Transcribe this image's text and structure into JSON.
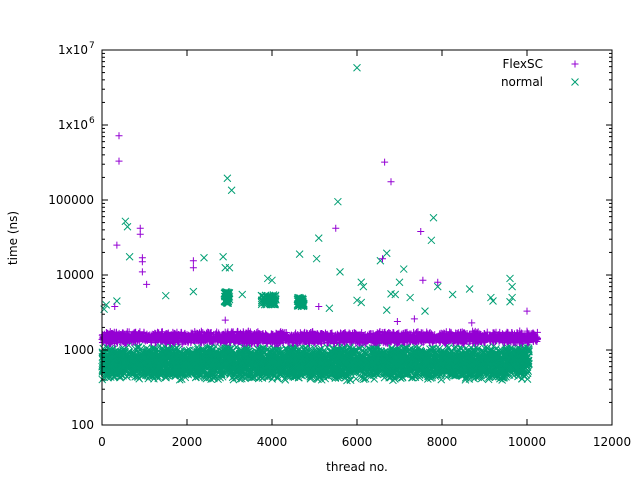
{
  "chart_data": {
    "type": "scatter",
    "title": "",
    "xlabel": "thread no.",
    "ylabel": "time (ns)",
    "xlim": [
      0,
      12000
    ],
    "ylim": [
      100,
      10000000
    ],
    "yscale": "log",
    "x_ticks": [
      {
        "value": 0,
        "label": "0"
      },
      {
        "value": 2000,
        "label": "2000"
      },
      {
        "value": 4000,
        "label": "4000"
      },
      {
        "value": 6000,
        "label": "6000"
      },
      {
        "value": 8000,
        "label": "8000"
      },
      {
        "value": 10000,
        "label": "10000"
      },
      {
        "value": 12000,
        "label": "12000"
      }
    ],
    "y_ticks": [
      {
        "value": 100,
        "label": "100"
      },
      {
        "value": 1000,
        "label": "1000"
      },
      {
        "value": 10000,
        "label": "10000"
      },
      {
        "value": 100000,
        "label": "100000"
      },
      {
        "value": 1000000,
        "label": "1x10",
        "exp": "6"
      },
      {
        "value": 10000000,
        "label": "1x10",
        "exp": "7"
      }
    ],
    "legend_position": "top-right",
    "series": [
      {
        "name": "FlexSC",
        "color": "#9400d3",
        "marker": "plus",
        "x_range": [
          0,
          10250
        ],
        "band": {
          "center": 1450,
          "low": 1200,
          "high": 1800
        },
        "points": [
          {
            "x": 400,
            "y": 720000
          },
          {
            "x": 400,
            "y": 330000
          },
          {
            "x": 350,
            "y": 25000
          },
          {
            "x": 900,
            "y": 42000
          },
          {
            "x": 900,
            "y": 35000
          },
          {
            "x": 950,
            "y": 17000
          },
          {
            "x": 950,
            "y": 15000
          },
          {
            "x": 1050,
            "y": 7500
          },
          {
            "x": 950,
            "y": 11000
          },
          {
            "x": 2150,
            "y": 15500
          },
          {
            "x": 2150,
            "y": 12500
          },
          {
            "x": 5500,
            "y": 42000
          },
          {
            "x": 6650,
            "y": 320000
          },
          {
            "x": 6800,
            "y": 175000
          },
          {
            "x": 6600,
            "y": 16500
          },
          {
            "x": 7500,
            "y": 38000
          },
          {
            "x": 7550,
            "y": 8500
          },
          {
            "x": 7900,
            "y": 8000
          },
          {
            "x": 10000,
            "y": 3300
          },
          {
            "x": 300,
            "y": 3800
          },
          {
            "x": 2900,
            "y": 2500
          },
          {
            "x": 5100,
            "y": 3800
          },
          {
            "x": 6950,
            "y": 2400
          },
          {
            "x": 7350,
            "y": 2600
          },
          {
            "x": 8700,
            "y": 2300
          }
        ]
      },
      {
        "name": "normal",
        "color": "#009e73",
        "marker": "cross",
        "x_range": [
          0,
          10050
        ],
        "band": {
          "center": 700,
          "low": 380,
          "high": 1150
        },
        "points": [
          {
            "x": 6000,
            "y": 5800000
          },
          {
            "x": 2950,
            "y": 195000
          },
          {
            "x": 3050,
            "y": 135000
          },
          {
            "x": 5550,
            "y": 95000
          },
          {
            "x": 550,
            "y": 52000
          },
          {
            "x": 600,
            "y": 44000
          },
          {
            "x": 7800,
            "y": 58000
          },
          {
            "x": 7750,
            "y": 29000
          },
          {
            "x": 5100,
            "y": 31000
          },
          {
            "x": 5050,
            "y": 16500
          },
          {
            "x": 4650,
            "y": 19000
          },
          {
            "x": 6700,
            "y": 19500
          },
          {
            "x": 6550,
            "y": 15500
          },
          {
            "x": 2850,
            "y": 17500
          },
          {
            "x": 2400,
            "y": 17000
          },
          {
            "x": 650,
            "y": 17500
          },
          {
            "x": 2900,
            "y": 12500
          },
          {
            "x": 3000,
            "y": 12500
          },
          {
            "x": 5600,
            "y": 11000
          },
          {
            "x": 7100,
            "y": 12000
          },
          {
            "x": 7000,
            "y": 8000
          },
          {
            "x": 3900,
            "y": 9000
          },
          {
            "x": 4000,
            "y": 8500
          },
          {
            "x": 6100,
            "y": 8000
          },
          {
            "x": 6150,
            "y": 7000
          },
          {
            "x": 7900,
            "y": 7000
          },
          {
            "x": 8650,
            "y": 6500
          },
          {
            "x": 8250,
            "y": 5500
          },
          {
            "x": 9600,
            "y": 9000
          },
          {
            "x": 9650,
            "y": 7000
          },
          {
            "x": 1500,
            "y": 5300
          },
          {
            "x": 2150,
            "y": 6000
          },
          {
            "x": 3300,
            "y": 5500
          },
          {
            "x": 9150,
            "y": 5000
          },
          {
            "x": 9200,
            "y": 4500
          },
          {
            "x": 350,
            "y": 4500
          },
          {
            "x": 100,
            "y": 4000
          },
          {
            "x": 50,
            "y": 3500
          },
          {
            "x": 7250,
            "y": 5000
          },
          {
            "x": 6900,
            "y": 5500
          },
          {
            "x": 6800,
            "y": 5600
          },
          {
            "x": 5350,
            "y": 3600
          },
          {
            "x": 6700,
            "y": 3400
          },
          {
            "x": 7600,
            "y": 3300
          },
          {
            "x": 4650,
            "y": 4800
          },
          {
            "x": 4700,
            "y": 4400
          },
          {
            "x": 4600,
            "y": 3900
          },
          {
            "x": 3800,
            "y": 4800
          },
          {
            "x": 3900,
            "y": 5200
          },
          {
            "x": 4050,
            "y": 4600
          },
          {
            "x": 2900,
            "y": 5800
          },
          {
            "x": 3000,
            "y": 4700
          },
          {
            "x": 6000,
            "y": 4600
          },
          {
            "x": 6100,
            "y": 4300
          },
          {
            "x": 9650,
            "y": 5000
          },
          {
            "x": 9600,
            "y": 4400
          }
        ],
        "clusters": [
          {
            "x_from": 3750,
            "x_to": 4100,
            "y_from": 4000,
            "y_to": 5500
          },
          {
            "x_from": 2880,
            "x_to": 3000,
            "y_from": 4200,
            "y_to": 6000
          },
          {
            "x_from": 4600,
            "x_to": 4750,
            "y_from": 3800,
            "y_to": 5000
          }
        ]
      }
    ]
  }
}
